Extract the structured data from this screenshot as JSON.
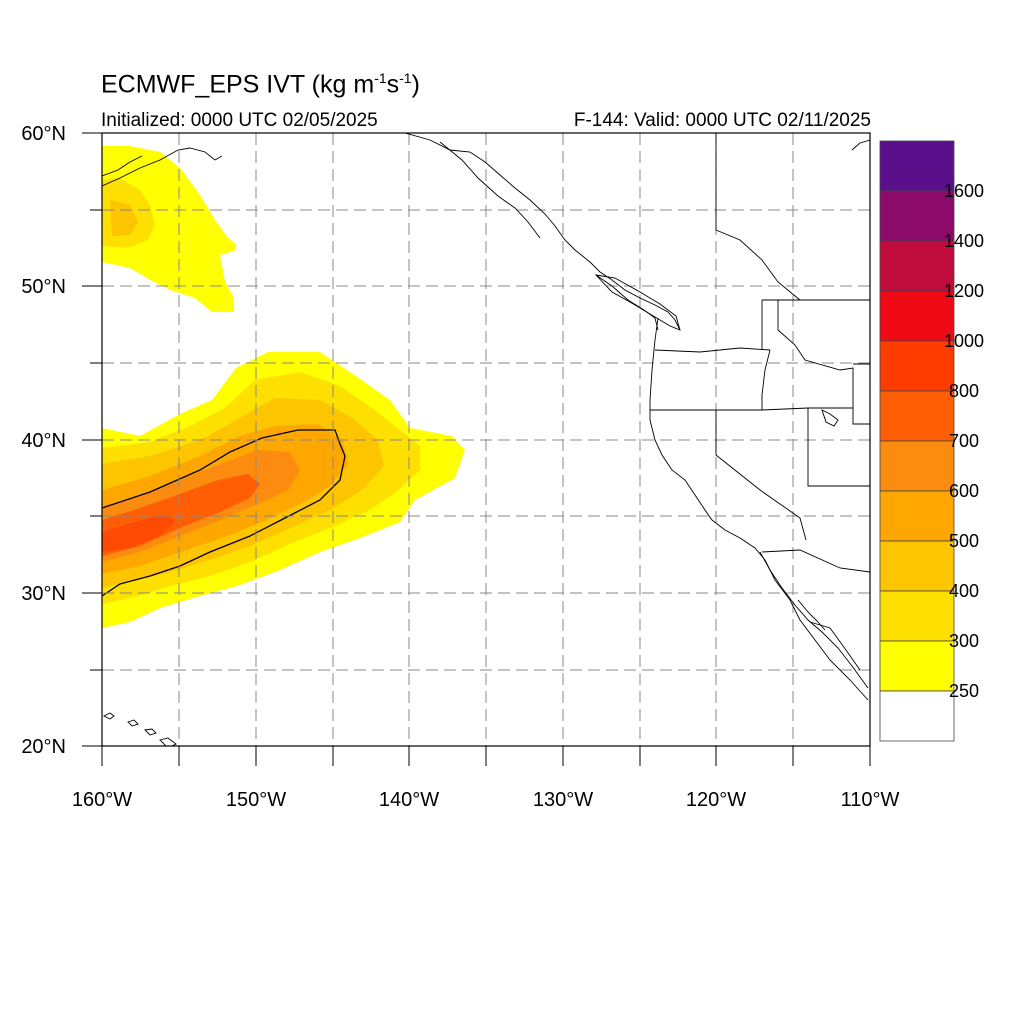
{
  "title": {
    "main": "ECMWF_EPS IVT (kg m",
    "sup1": "-1",
    "mid": "s",
    "sup2": "-1",
    "end": ")"
  },
  "init_text": "Initialized: 0000 UTC 02/05/2025",
  "valid_text": "F-144: Valid: 0000 UTC 02/11/2025",
  "lat_labels": [
    "60°N",
    "50°N",
    "40°N",
    "30°N",
    "20°N"
  ],
  "lon_labels": [
    "160°W",
    "150°W",
    "140°W",
    "130°W",
    "120°W",
    "110°W"
  ],
  "colorbar": {
    "labels": [
      "1600",
      "1400",
      "1200",
      "1000",
      "800",
      "700",
      "600",
      "500",
      "400",
      "300",
      "250"
    ],
    "colors": [
      "#5c0f8b",
      "#8b0a6a",
      "#c00c3c",
      "#ef0a16",
      "#ff3c00",
      "#ff5e05",
      "#fc8c10",
      "#fea700",
      "#fdc400",
      "#fde000",
      "#ffff00",
      "#ffffff"
    ]
  },
  "map": {
    "lon_range": [
      -160,
      -110
    ],
    "lat_range": [
      20,
      60
    ],
    "projection": "cylindrical equidistant",
    "grid": "dashed every 5°"
  }
}
